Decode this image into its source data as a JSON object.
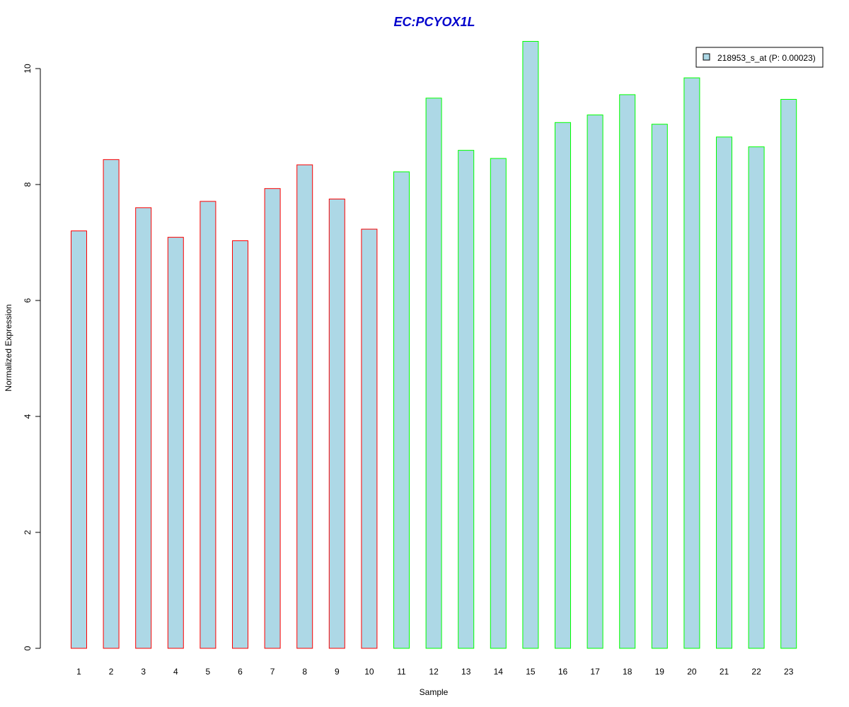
{
  "chart_data": {
    "type": "bar",
    "title": "EC:PCYOX1L",
    "xlabel": "Sample",
    "ylabel": "Normalized Expression",
    "categories": [
      "1",
      "2",
      "3",
      "4",
      "5",
      "6",
      "7",
      "8",
      "9",
      "10",
      "11",
      "12",
      "13",
      "14",
      "15",
      "16",
      "17",
      "18",
      "19",
      "20",
      "21",
      "22",
      "23"
    ],
    "series": [
      {
        "name": "218953_s_at (P: 0.00023)",
        "values": [
          7.2,
          8.43,
          7.6,
          7.09,
          7.71,
          7.03,
          7.93,
          8.34,
          7.75,
          7.23,
          8.22,
          9.49,
          8.59,
          8.45,
          10.47,
          9.07,
          9.2,
          9.55,
          9.04,
          9.84,
          8.82,
          8.65,
          9.47
        ]
      }
    ],
    "groups": [
      "red",
      "red",
      "red",
      "red",
      "red",
      "red",
      "red",
      "red",
      "red",
      "red",
      "green",
      "green",
      "green",
      "green",
      "green",
      "green",
      "green",
      "green",
      "green",
      "green",
      "green",
      "green",
      "green"
    ],
    "y_ticks": [
      "0",
      "2",
      "4",
      "6",
      "8",
      "10"
    ],
    "ylim": [
      0,
      10.5
    ],
    "legend_position": "top-right",
    "grid": false,
    "colors": {
      "bar_fill": "#add8e6",
      "group_red": "#ff0000",
      "group_green": "#00ff00",
      "title": "#0000cc",
      "axis": "#000000"
    }
  }
}
